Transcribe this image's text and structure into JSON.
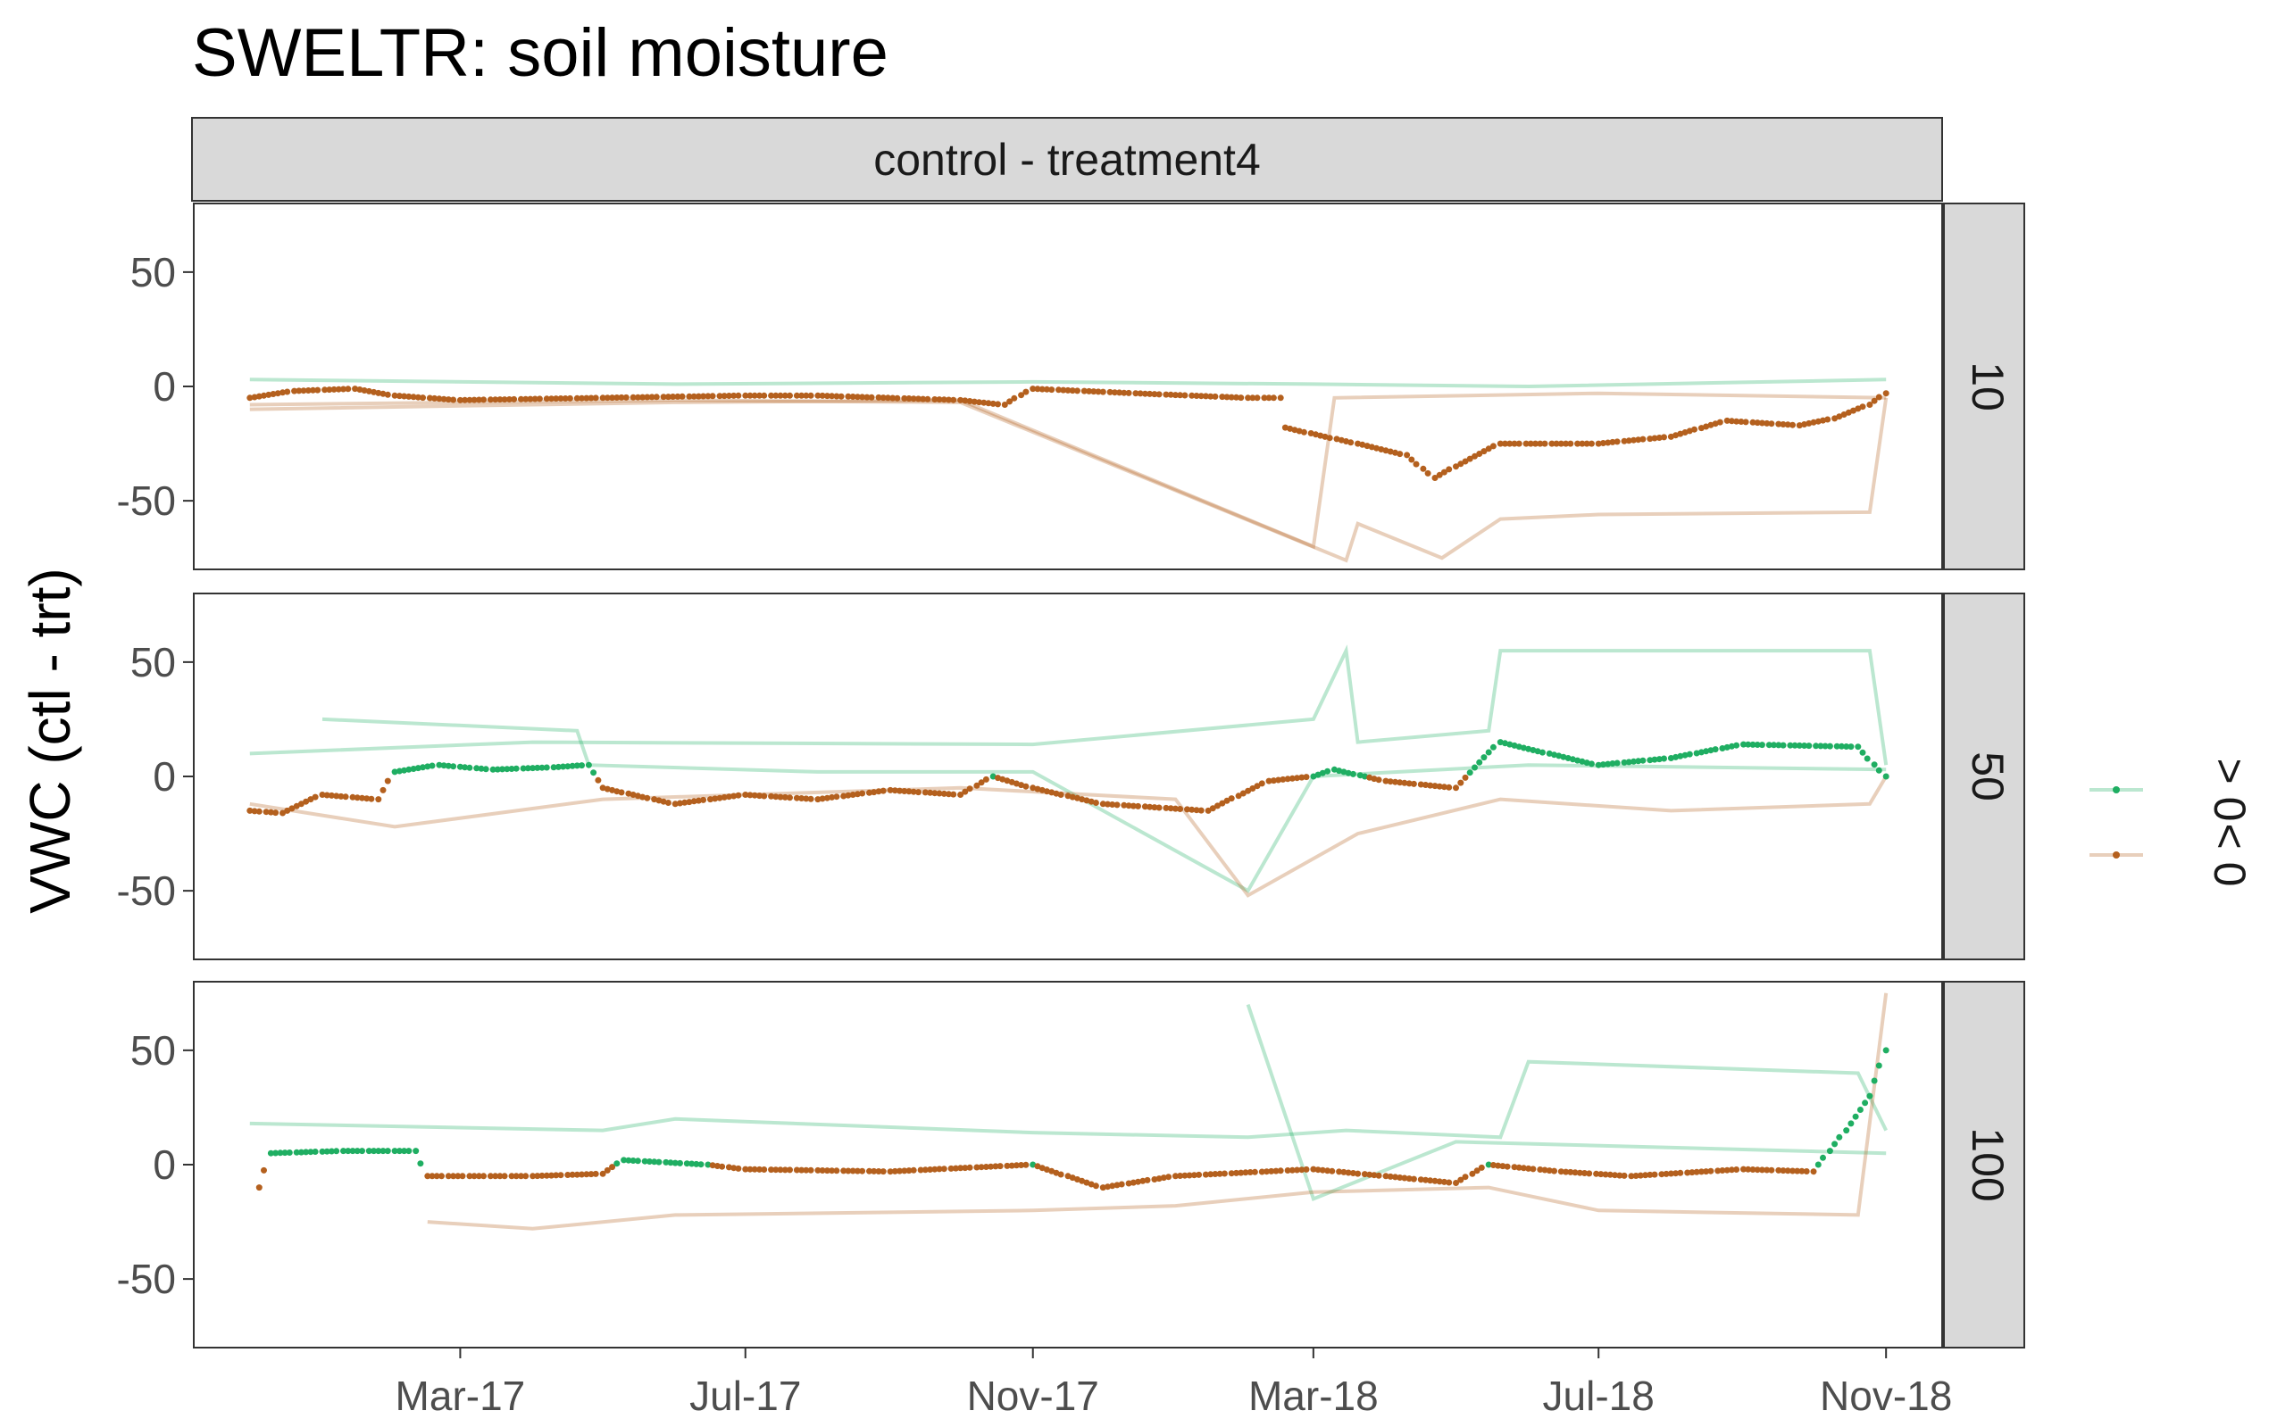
{
  "title": "SWELTR: soil moisture",
  "strip_top": "control - treatment4",
  "ylabel": "VWC (ctl - trt)",
  "legend": {
    "entries": [
      {
        "label": "> 0",
        "color": "#1FAE62"
      },
      {
        "label": "< 0",
        "color": "#B4601E"
      }
    ]
  },
  "chart_data": {
    "type": "line",
    "title": "SWELTR: soil moisture",
    "facet_column": "control - treatment4",
    "ylabel": "VWC (ctl - trt)",
    "xlim": [
      "2016-11-07",
      "2018-11-25"
    ],
    "ylim": [
      -80,
      80
    ],
    "yticks": [
      -50,
      0,
      50
    ],
    "xticks": [
      {
        "date": "2017-03-01",
        "label": "Mar-17"
      },
      {
        "date": "2017-07-01",
        "label": "Jul-17"
      },
      {
        "date": "2017-11-01",
        "label": "Nov-17"
      },
      {
        "date": "2018-03-01",
        "label": "Mar-18"
      },
      {
        "date": "2018-07-01",
        "label": "Jul-18"
      },
      {
        "date": "2018-11-01",
        "label": "Nov-18"
      }
    ],
    "grid": false,
    "legend_position": "right",
    "colors": {
      "positive": "#1FAE62",
      "negative": "#B4601E"
    },
    "panels": [
      {
        "depth": "10",
        "mean": [
          {
            "x": "2016-12-01",
            "y": -5
          },
          {
            "x": "2016-12-20",
            "y": -2
          },
          {
            "x": "2017-01-15",
            "y": -1
          },
          {
            "x": "2017-02-01",
            "y": -4
          },
          {
            "x": "2017-03-01",
            "y": -6
          },
          {
            "x": "2017-05-01",
            "y": -5
          },
          {
            "x": "2017-07-01",
            "y": -4
          },
          {
            "x": "2017-08-01",
            "y": -4
          },
          {
            "x": "2017-10-01",
            "y": -6
          },
          {
            "x": "2017-10-20",
            "y": -8
          },
          {
            "x": "2017-11-01",
            "y": -1
          },
          {
            "x": "2017-12-15",
            "y": -3
          },
          {
            "x": "2018-02-01",
            "y": -5
          },
          {
            "x": "2018-02-15",
            "y": -5
          },
          {
            "x": "2018-02-17",
            "y": -18
          },
          {
            "x": "2018-03-20",
            "y": -25
          },
          {
            "x": "2018-04-10",
            "y": -30
          },
          {
            "x": "2018-04-22",
            "y": -40
          },
          {
            "x": "2018-05-01",
            "y": -35
          },
          {
            "x": "2018-05-20",
            "y": -25
          },
          {
            "x": "2018-07-01",
            "y": -25
          },
          {
            "x": "2018-08-01",
            "y": -22
          },
          {
            "x": "2018-08-25",
            "y": -15
          },
          {
            "x": "2018-09-25",
            "y": -17
          },
          {
            "x": "2018-10-10",
            "y": -14
          },
          {
            "x": "2018-10-25",
            "y": -8
          },
          {
            "x": "2018-11-01",
            "y": -3
          }
        ],
        "sensors": [
          {
            "sign": "positive",
            "points": [
              {
                "x": "2016-12-01",
                "y": 3
              },
              {
                "x": "2017-06-01",
                "y": 1
              },
              {
                "x": "2017-11-01",
                "y": 2
              },
              {
                "x": "2018-03-01",
                "y": 1
              },
              {
                "x": "2018-06-01",
                "y": 0
              },
              {
                "x": "2018-11-01",
                "y": 3
              }
            ]
          },
          {
            "sign": "negative",
            "points": [
              {
                "x": "2016-12-01",
                "y": -8
              },
              {
                "x": "2017-06-01",
                "y": -6
              },
              {
                "x": "2017-10-01",
                "y": -7
              },
              {
                "x": "2018-03-15",
                "y": -76
              },
              {
                "x": "2018-03-20",
                "y": -60
              },
              {
                "x": "2018-04-25",
                "y": -75
              },
              {
                "x": "2018-05-20",
                "y": -58
              },
              {
                "x": "2018-07-01",
                "y": -56
              },
              {
                "x": "2018-10-25",
                "y": -55
              },
              {
                "x": "2018-11-01",
                "y": -5
              }
            ]
          },
          {
            "sign": "negative",
            "points": [
              {
                "x": "2016-12-01",
                "y": -10
              },
              {
                "x": "2017-06-01",
                "y": -7
              },
              {
                "x": "2017-10-01",
                "y": -6
              },
              {
                "x": "2018-03-01",
                "y": -70
              },
              {
                "x": "2018-03-10",
                "y": -5
              },
              {
                "x": "2018-07-01",
                "y": -3
              },
              {
                "x": "2018-11-01",
                "y": -5
              }
            ]
          }
        ]
      },
      {
        "depth": "50",
        "mean": [
          {
            "x": "2016-12-01",
            "y": -15
          },
          {
            "x": "2016-12-15",
            "y": -16
          },
          {
            "x": "2017-01-01",
            "y": -8
          },
          {
            "x": "2017-01-25",
            "y": -10
          },
          {
            "x": "2017-02-01",
            "y": 2
          },
          {
            "x": "2017-02-20",
            "y": 5
          },
          {
            "x": "2017-03-15",
            "y": 3
          },
          {
            "x": "2017-04-10",
            "y": 4
          },
          {
            "x": "2017-04-25",
            "y": 5
          },
          {
            "x": "2017-05-01",
            "y": -5
          },
          {
            "x": "2017-06-01",
            "y": -12
          },
          {
            "x": "2017-07-01",
            "y": -8
          },
          {
            "x": "2017-08-01",
            "y": -10
          },
          {
            "x": "2017-09-01",
            "y": -6
          },
          {
            "x": "2017-10-01",
            "y": -8
          },
          {
            "x": "2017-10-15",
            "y": 0
          },
          {
            "x": "2017-11-01",
            "y": -5
          },
          {
            "x": "2017-12-01",
            "y": -12
          },
          {
            "x": "2018-01-15",
            "y": -15
          },
          {
            "x": "2018-02-10",
            "y": -2
          },
          {
            "x": "2018-03-01",
            "y": 0
          },
          {
            "x": "2018-03-10",
            "y": 3
          },
          {
            "x": "2018-04-01",
            "y": -2
          },
          {
            "x": "2018-05-01",
            "y": -5
          },
          {
            "x": "2018-05-20",
            "y": 15
          },
          {
            "x": "2018-06-10",
            "y": 10
          },
          {
            "x": "2018-07-01",
            "y": 5
          },
          {
            "x": "2018-08-01",
            "y": 8
          },
          {
            "x": "2018-09-01",
            "y": 14
          },
          {
            "x": "2018-10-20",
            "y": 13
          },
          {
            "x": "2018-11-01",
            "y": 0
          }
        ],
        "sensors": [
          {
            "sign": "positive",
            "points": [
              {
                "x": "2016-12-01",
                "y": 10
              },
              {
                "x": "2017-04-01",
                "y": 15
              },
              {
                "x": "2017-11-01",
                "y": 14
              },
              {
                "x": "2018-03-01",
                "y": 25
              },
              {
                "x": "2018-03-15",
                "y": 55
              },
              {
                "x": "2018-03-20",
                "y": 15
              },
              {
                "x": "2018-05-15",
                "y": 20
              },
              {
                "x": "2018-05-20",
                "y": 55
              },
              {
                "x": "2018-10-25",
                "y": 55
              },
              {
                "x": "2018-11-01",
                "y": 5
              }
            ]
          },
          {
            "sign": "positive",
            "points": [
              {
                "x": "2017-01-01",
                "y": 25
              },
              {
                "x": "2017-04-20",
                "y": 20
              },
              {
                "x": "2017-04-25",
                "y": 5
              },
              {
                "x": "2017-08-01",
                "y": 2
              },
              {
                "x": "2017-11-01",
                "y": 2
              },
              {
                "x": "2018-02-01",
                "y": -50
              },
              {
                "x": "2018-03-01",
                "y": 0
              },
              {
                "x": "2018-06-01",
                "y": 5
              },
              {
                "x": "2018-11-01",
                "y": 3
              }
            ]
          },
          {
            "sign": "negative",
            "points": [
              {
                "x": "2016-12-01",
                "y": -12
              },
              {
                "x": "2017-02-01",
                "y": -22
              },
              {
                "x": "2017-05-01",
                "y": -10
              },
              {
                "x": "2017-10-01",
                "y": -5
              },
              {
                "x": "2018-01-01",
                "y": -10
              },
              {
                "x": "2018-02-01",
                "y": -52
              },
              {
                "x": "2018-03-20",
                "y": -25
              },
              {
                "x": "2018-05-20",
                "y": -10
              },
              {
                "x": "2018-08-01",
                "y": -15
              },
              {
                "x": "2018-10-25",
                "y": -12
              },
              {
                "x": "2018-11-01",
                "y": 0
              }
            ]
          }
        ]
      },
      {
        "depth": "100",
        "mean": [
          {
            "x": "2016-12-05",
            "y": -10
          },
          {
            "x": "2016-12-10",
            "y": 5
          },
          {
            "x": "2017-01-10",
            "y": 6
          },
          {
            "x": "2017-02-10",
            "y": 6
          },
          {
            "x": "2017-02-15",
            "y": -5
          },
          {
            "x": "2017-04-01",
            "y": -5
          },
          {
            "x": "2017-05-01",
            "y": -4
          },
          {
            "x": "2017-05-10",
            "y": 2
          },
          {
            "x": "2017-06-15",
            "y": 0
          },
          {
            "x": "2017-07-01",
            "y": -2
          },
          {
            "x": "2017-09-01",
            "y": -3
          },
          {
            "x": "2017-11-01",
            "y": 0
          },
          {
            "x": "2017-12-01",
            "y": -10
          },
          {
            "x": "2018-01-01",
            "y": -5
          },
          {
            "x": "2018-03-01",
            "y": -2
          },
          {
            "x": "2018-04-01",
            "y": -5
          },
          {
            "x": "2018-05-01",
            "y": -8
          },
          {
            "x": "2018-05-15",
            "y": 0
          },
          {
            "x": "2018-06-15",
            "y": -3
          },
          {
            "x": "2018-07-15",
            "y": -5
          },
          {
            "x": "2018-09-01",
            "y": -2
          },
          {
            "x": "2018-10-01",
            "y": -3
          },
          {
            "x": "2018-10-15",
            "y": 15
          },
          {
            "x": "2018-10-25",
            "y": 30
          },
          {
            "x": "2018-11-01",
            "y": 50
          }
        ],
        "sensors": [
          {
            "sign": "positive",
            "points": [
              {
                "x": "2016-12-01",
                "y": 18
              },
              {
                "x": "2017-05-01",
                "y": 15
              },
              {
                "x": "2017-06-01",
                "y": 20
              },
              {
                "x": "2017-11-01",
                "y": 14
              },
              {
                "x": "2018-02-01",
                "y": 12
              },
              {
                "x": "2018-03-15",
                "y": 15
              },
              {
                "x": "2018-05-20",
                "y": 12
              },
              {
                "x": "2018-06-01",
                "y": 45
              },
              {
                "x": "2018-10-20",
                "y": 40
              },
              {
                "x": "2018-11-01",
                "y": 15
              }
            ]
          },
          {
            "sign": "positive",
            "points": [
              {
                "x": "2018-02-01",
                "y": 70
              },
              {
                "x": "2018-03-01",
                "y": -15
              },
              {
                "x": "2018-05-01",
                "y": 10
              },
              {
                "x": "2018-11-01",
                "y": 5
              }
            ]
          },
          {
            "sign": "negative",
            "points": [
              {
                "x": "2017-02-15",
                "y": -25
              },
              {
                "x": "2017-04-01",
                "y": -28
              },
              {
                "x": "2017-06-01",
                "y": -22
              },
              {
                "x": "2017-11-01",
                "y": -20
              },
              {
                "x": "2018-01-01",
                "y": -18
              },
              {
                "x": "2018-03-01",
                "y": -12
              },
              {
                "x": "2018-05-15",
                "y": -10
              },
              {
                "x": "2018-07-01",
                "y": -20
              },
              {
                "x": "2018-10-20",
                "y": -22
              },
              {
                "x": "2018-11-01",
                "y": 75
              }
            ]
          }
        ]
      }
    ]
  }
}
